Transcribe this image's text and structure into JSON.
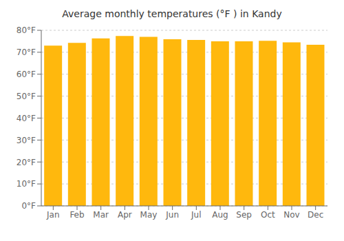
{
  "chart_data": {
    "type": "bar",
    "title": "Average monthly temperatures (°F ) in Kandy",
    "categories": [
      "Jan",
      "Feb",
      "Mar",
      "Apr",
      "May",
      "Jun",
      "Jul",
      "Aug",
      "Sep",
      "Oct",
      "Nov",
      "Dec"
    ],
    "values": [
      73.0,
      74.3,
      76.3,
      77.4,
      77.0,
      75.9,
      75.6,
      75.0,
      75.0,
      75.2,
      74.5,
      73.4
    ],
    "color": "#FFB80D",
    "ylim": [
      0,
      80
    ],
    "yticks": [
      {
        "value": 0,
        "label": "0°F"
      },
      {
        "value": 10,
        "label": "10°F"
      },
      {
        "value": 20,
        "label": "20°F"
      },
      {
        "value": 30,
        "label": "30°F"
      },
      {
        "value": 40,
        "label": "40°F"
      },
      {
        "value": 50,
        "label": "50°F"
      },
      {
        "value": 60,
        "label": "60°F"
      },
      {
        "value": 70,
        "label": "70°F"
      },
      {
        "value": 80,
        "label": "80°F"
      }
    ],
    "grid": true
  }
}
